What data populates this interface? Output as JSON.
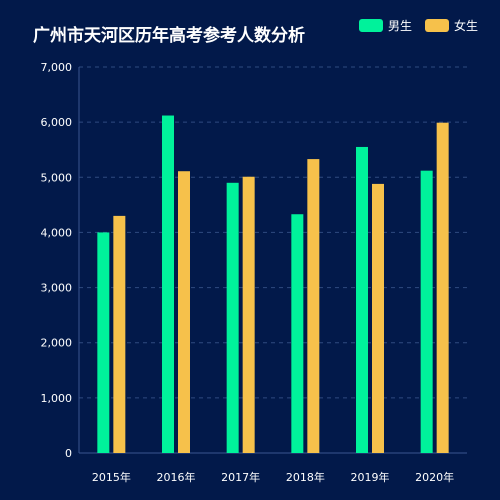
{
  "chart_data": {
    "type": "bar",
    "title": "广州市天河区历年高考参考人数分析",
    "categories": [
      "2015年",
      "2016年",
      "2017年",
      "2018年",
      "2019年",
      "2020年"
    ],
    "series": [
      {
        "name": "男生",
        "color": "#00f29b",
        "values": [
          4000,
          6120,
          4900,
          4330,
          5550,
          5120
        ]
      },
      {
        "name": "女生",
        "color": "#f6c14b",
        "values": [
          4300,
          5110,
          5010,
          5330,
          4880,
          5990
        ]
      }
    ],
    "ylim": [
      0,
      7000
    ],
    "yticks": [
      "0",
      "1,000",
      "2,000",
      "3,000",
      "4,000",
      "5,000",
      "6,000",
      "7,000"
    ],
    "grid": true,
    "legend_position": "top-right"
  }
}
